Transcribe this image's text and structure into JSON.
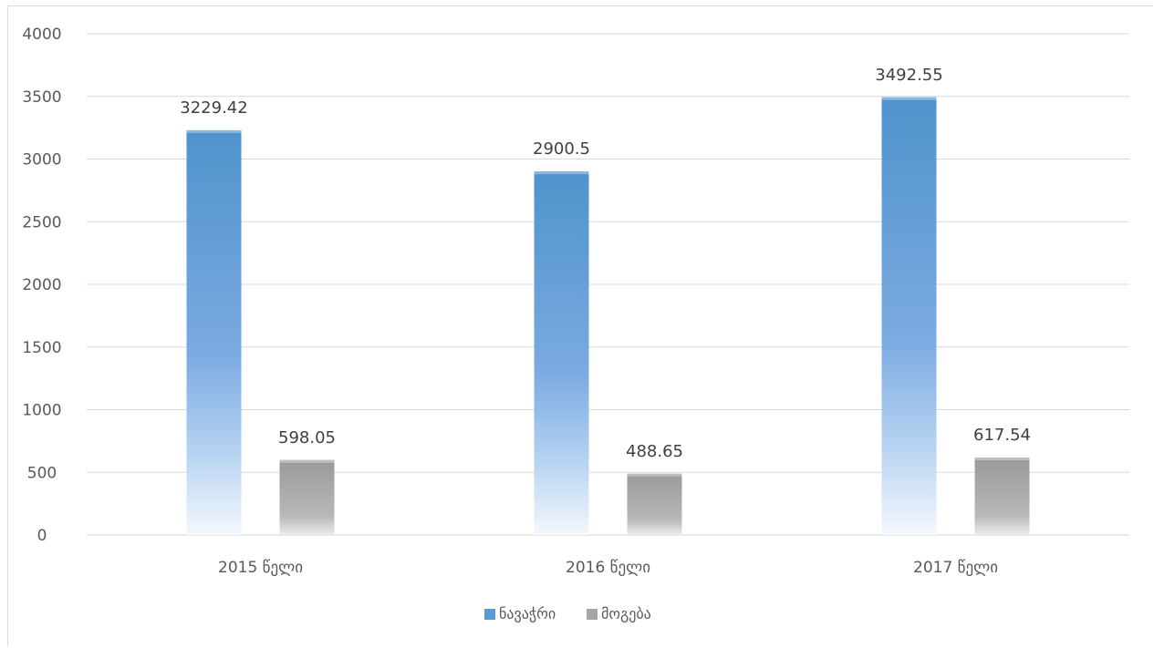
{
  "chart_data": {
    "type": "bar",
    "categories": [
      "2015 წელი",
      "2016 წელი",
      "2017 წელი"
    ],
    "series": [
      {
        "name": "ნავაჭრი",
        "values": [
          3229.42,
          2900.5,
          3492.55
        ],
        "color": "#5b9bd5"
      },
      {
        "name": "მოგება",
        "values": [
          598.05,
          488.65,
          617.54
        ],
        "color": "#a5a5a5"
      }
    ],
    "data_labels": [
      [
        "3229.42",
        "2900.5",
        "3492.55"
      ],
      [
        "598.05",
        "488.65",
        "617.54"
      ]
    ],
    "ylim": [
      0,
      4000
    ],
    "yticks": [
      0,
      500,
      1000,
      1500,
      2000,
      2500,
      3000,
      3500,
      4000
    ],
    "grid": true,
    "legend": "bottom",
    "title": "",
    "xlabel": "",
    "ylabel": ""
  }
}
